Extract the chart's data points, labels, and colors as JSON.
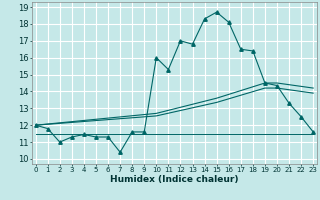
{
  "xlabel": "Humidex (Indice chaleur)",
  "background_color": "#c5e8e8",
  "grid_color": "#ffffff",
  "line_color": "#006666",
  "x_ticks": [
    0,
    1,
    2,
    3,
    4,
    5,
    6,
    7,
    8,
    9,
    10,
    11,
    12,
    13,
    14,
    15,
    16,
    17,
    18,
    19,
    20,
    21,
    22,
    23
  ],
  "ylim": [
    9.7,
    19.3
  ],
  "xlim": [
    -0.3,
    23.3
  ],
  "yticks": [
    10,
    11,
    12,
    13,
    14,
    15,
    16,
    17,
    18,
    19
  ],
  "line1_x": [
    0,
    1,
    2,
    3,
    4,
    5,
    6,
    7,
    8,
    9,
    10,
    11,
    12,
    13,
    14,
    15,
    16,
    17,
    18,
    19,
    20,
    21,
    22,
    23
  ],
  "line1_y": [
    12.0,
    11.8,
    11.0,
    11.3,
    11.45,
    11.3,
    11.3,
    10.4,
    11.6,
    11.6,
    16.0,
    15.3,
    17.0,
    16.8,
    18.3,
    18.7,
    18.1,
    16.5,
    16.4,
    14.5,
    14.35,
    13.3,
    12.5,
    11.6
  ],
  "line2_x": [
    0,
    10,
    15,
    19,
    20,
    21,
    22,
    23
  ],
  "line2_y": [
    12.0,
    12.7,
    13.6,
    14.5,
    14.5,
    14.4,
    14.3,
    14.2
  ],
  "line3_x": [
    0,
    10,
    15,
    19,
    20,
    21,
    22,
    23
  ],
  "line3_y": [
    12.0,
    12.55,
    13.35,
    14.2,
    14.2,
    14.1,
    14.0,
    13.9
  ],
  "line4_x": [
    0,
    1,
    2,
    3,
    4,
    5,
    6,
    7,
    8,
    9,
    10,
    15,
    20,
    21,
    22,
    23
  ],
  "line4_y": [
    11.5,
    11.5,
    11.5,
    11.5,
    11.5,
    11.5,
    11.5,
    11.5,
    11.5,
    11.5,
    11.5,
    11.5,
    11.5,
    11.5,
    11.5,
    11.5
  ]
}
